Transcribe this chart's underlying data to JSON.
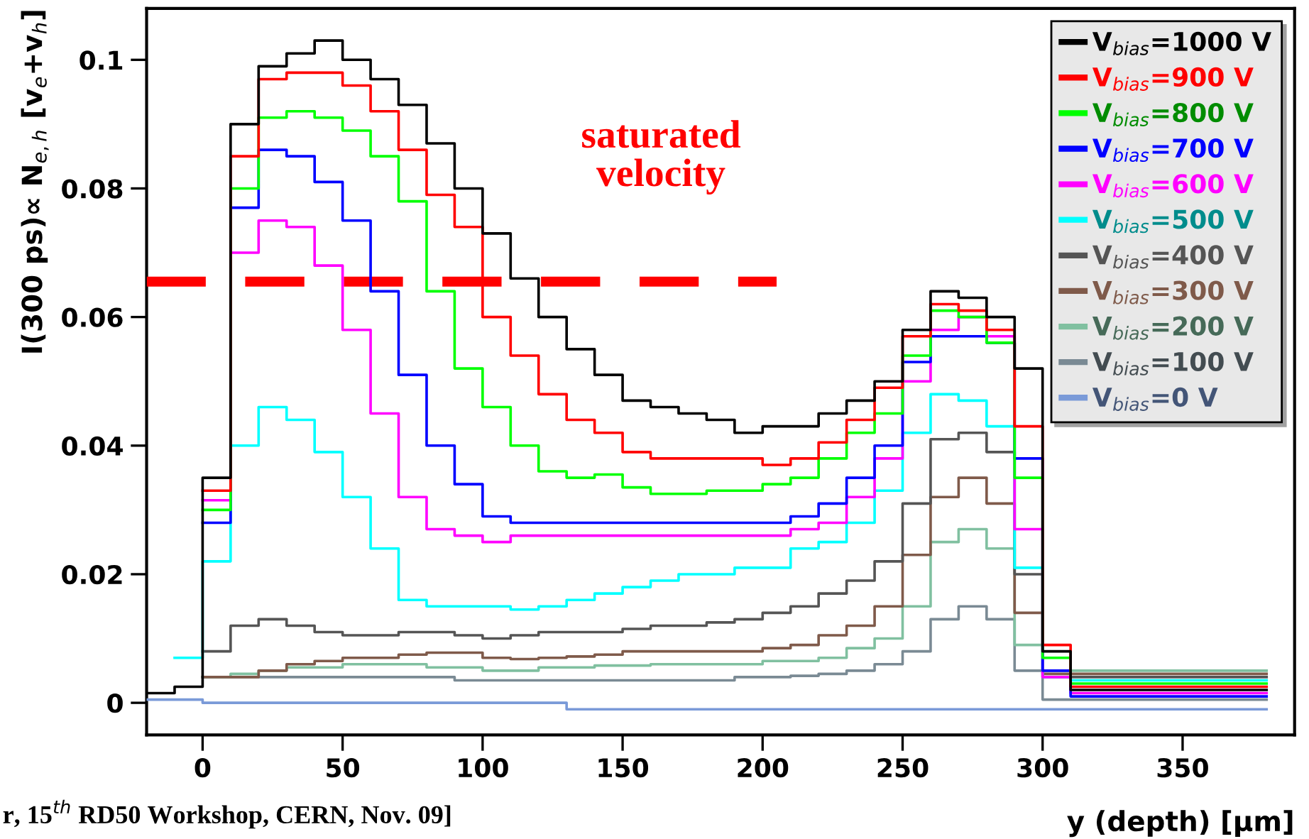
{
  "chart_data": {
    "type": "step",
    "xlabel": "y (depth) [μm]",
    "ylabel": "I(300 ps)∝ N$_{e,h}$ [v$_{e}$+v$_{h}$]",
    "x": [
      -20,
      -10,
      0,
      10,
      20,
      30,
      40,
      50,
      60,
      70,
      80,
      90,
      100,
      110,
      120,
      130,
      140,
      150,
      160,
      170,
      180,
      190,
      200,
      210,
      220,
      230,
      240,
      250,
      260,
      270,
      280,
      290,
      300,
      310,
      320,
      330,
      340,
      350,
      360,
      370,
      380
    ],
    "xlim": [
      -20,
      390
    ],
    "ylim": [
      -0.005,
      0.108
    ],
    "xticks": [
      0,
      50,
      100,
      150,
      200,
      250,
      300,
      350
    ],
    "yticks": [
      0,
      {
        "value": 0.02,
        "label": "0.02"
      },
      {
        "value": 0.04,
        "label": "0.04"
      },
      {
        "value": 0.06,
        "label": "0.06"
      },
      {
        "value": 0.08,
        "label": "0.08"
      },
      0.1
    ],
    "legend": "top right",
    "grid": false,
    "line_style": "solid",
    "marker": "none",
    "series": [
      {
        "name": "V$_{bias}$=1000 V",
        "color": "#000000",
        "values": [
          0.0015,
          0.0025,
          0.035,
          0.09,
          0.099,
          0.101,
          0.103,
          0.1,
          0.097,
          0.093,
          0.087,
          0.08,
          0.073,
          0.066,
          0.06,
          0.055,
          0.051,
          0.047,
          0.046,
          0.045,
          0.044,
          0.042,
          0.043,
          0.043,
          0.045,
          0.047,
          0.05,
          0.058,
          0.064,
          0.063,
          0.06,
          0.052,
          0.008,
          0.002,
          0.002,
          0.002,
          0.002,
          0.002,
          0.002,
          0.002,
          0.002
        ]
      },
      {
        "name": "V$_{bias}$=900 V",
        "color": "#ff0000",
        "values": [
          null,
          null,
          0.033,
          0.085,
          0.097,
          0.098,
          0.098,
          0.096,
          0.092,
          0.086,
          0.079,
          0.074,
          0.06,
          0.054,
          0.048,
          0.044,
          0.042,
          0.039,
          0.038,
          0.038,
          0.038,
          0.038,
          0.037,
          0.038,
          0.0405,
          0.044,
          0.049,
          0.057,
          0.062,
          0.061,
          0.058,
          0.043,
          0.009,
          0.0025,
          0.0025,
          0.0025,
          0.0025,
          0.0025,
          0.0025,
          0.0025,
          0.0025
        ]
      },
      {
        "name": "V$_{bias}$=800 V",
        "color": "#00ff00",
        "values": [
          null,
          null,
          0.03,
          0.08,
          0.091,
          0.092,
          0.091,
          0.089,
          0.085,
          0.078,
          0.064,
          0.052,
          0.046,
          0.04,
          0.036,
          0.035,
          0.0355,
          0.0335,
          0.0325,
          0.0325,
          0.033,
          0.033,
          0.034,
          0.035,
          0.038,
          0.042,
          0.045,
          0.054,
          0.061,
          0.06,
          0.056,
          0.035,
          0.007,
          0.003,
          0.003,
          0.003,
          0.003,
          0.003,
          0.003,
          0.003,
          0.003
        ]
      },
      {
        "name": "V$_{bias}$=700 V",
        "color": "#0000ff",
        "values": [
          null,
          null,
          0.028,
          0.077,
          0.086,
          0.085,
          0.081,
          0.075,
          0.064,
          0.051,
          0.04,
          0.034,
          0.029,
          0.028,
          0.028,
          0.028,
          0.028,
          0.028,
          0.028,
          0.028,
          0.028,
          0.028,
          0.028,
          0.029,
          0.031,
          0.035,
          0.04,
          0.053,
          0.057,
          0.057,
          0.056,
          0.038,
          0.005,
          0.001,
          0.001,
          0.001,
          0.001,
          0.001,
          0.001,
          0.001,
          0.001
        ]
      },
      {
        "name": "V$_{bias}$=600 V",
        "color": "#ff00ff",
        "values": [
          null,
          null,
          0.0315,
          0.07,
          0.075,
          0.074,
          0.068,
          0.058,
          0.045,
          0.032,
          0.027,
          0.026,
          0.025,
          0.026,
          0.026,
          0.026,
          0.026,
          0.026,
          0.026,
          0.026,
          0.026,
          0.026,
          0.026,
          0.027,
          0.028,
          0.032,
          0.038,
          0.05,
          0.058,
          0.06,
          0.057,
          0.027,
          0.004,
          0.0015,
          0.0015,
          0.0015,
          0.0015,
          0.0015,
          0.0015,
          0.0015,
          0.0015
        ]
      },
      {
        "name": "V$_{bias}$=500 V",
        "color": "#00ffff",
        "values": [
          null,
          0.007,
          0.022,
          0.04,
          0.046,
          0.044,
          0.039,
          0.032,
          0.024,
          0.016,
          0.015,
          0.015,
          0.015,
          0.0145,
          0.015,
          0.016,
          0.017,
          0.018,
          0.019,
          0.02,
          0.02,
          0.021,
          0.021,
          0.024,
          0.025,
          0.028,
          0.033,
          0.042,
          0.048,
          0.047,
          0.043,
          0.021,
          0.004,
          0.0035,
          0.0035,
          0.0035,
          0.0035,
          0.0035,
          0.0035,
          0.0035,
          0.0035
        ]
      },
      {
        "name": "V$_{bias}$=400 V",
        "color": "#555555",
        "values": [
          null,
          null,
          0.008,
          0.012,
          0.013,
          0.012,
          0.011,
          0.0105,
          0.0105,
          0.011,
          0.011,
          0.0105,
          0.01,
          0.0105,
          0.011,
          0.011,
          0.011,
          0.0115,
          0.012,
          0.012,
          0.0125,
          0.013,
          0.014,
          0.015,
          0.017,
          0.019,
          0.022,
          0.031,
          0.041,
          0.042,
          0.039,
          0.02,
          0.004,
          0.004,
          0.004,
          0.004,
          0.004,
          0.004,
          0.004,
          0.004,
          0.004
        ]
      },
      {
        "name": "V$_{bias}$=300 V",
        "color": "#7f5a4a",
        "values": [
          null,
          null,
          0.004,
          0.004,
          0.005,
          0.006,
          0.0065,
          0.007,
          0.007,
          0.0075,
          0.0078,
          0.0078,
          0.007,
          0.0068,
          0.007,
          0.0072,
          0.0075,
          0.008,
          0.008,
          0.008,
          0.008,
          0.008,
          0.0085,
          0.009,
          0.0105,
          0.012,
          0.015,
          0.023,
          0.032,
          0.035,
          0.031,
          0.014,
          0.0045,
          0.0045,
          0.0045,
          0.0045,
          0.0045,
          0.0045,
          0.0045,
          0.0045,
          0.0045
        ]
      },
      {
        "name": "V$_{bias}$=200 V",
        "color": "#80c0a0",
        "values": [
          null,
          null,
          0.004,
          0.0045,
          0.005,
          0.0055,
          0.0055,
          0.006,
          0.006,
          0.006,
          0.0055,
          0.0055,
          0.005,
          0.005,
          0.0055,
          0.0055,
          0.0058,
          0.0058,
          0.006,
          0.006,
          0.006,
          0.006,
          0.0065,
          0.0065,
          0.007,
          0.0085,
          0.01,
          0.015,
          0.025,
          0.027,
          0.024,
          0.009,
          0.005,
          0.005,
          0.005,
          0.005,
          0.005,
          0.005,
          0.005,
          0.005,
          0.005
        ]
      },
      {
        "name": "V$_{bias}$=100 V",
        "color": "#7a8a94",
        "values": [
          null,
          null,
          0.004,
          0.004,
          0.004,
          0.004,
          0.004,
          0.004,
          0.004,
          0.004,
          0.004,
          0.0035,
          0.0035,
          0.0035,
          0.0035,
          0.0035,
          0.0035,
          0.0035,
          0.0035,
          0.0035,
          0.0035,
          0.004,
          0.004,
          0.0042,
          0.0045,
          0.005,
          0.006,
          0.008,
          0.013,
          0.015,
          0.013,
          0.005,
          0.0005,
          0.0005,
          0.0005,
          0.0005,
          0.0005,
          0.0005,
          0.0005,
          0.0005,
          0.0005
        ]
      },
      {
        "name": "V$_{bias}$=0 V",
        "color": "#7a9ad8",
        "values": [
          0.0005,
          0.0005,
          0,
          0,
          0,
          0,
          0,
          0,
          0,
          0,
          0,
          0,
          0,
          0,
          0,
          -0.001,
          -0.001,
          -0.001,
          -0.001,
          -0.001,
          -0.001,
          -0.001,
          -0.001,
          -0.001,
          -0.001,
          -0.001,
          -0.001,
          -0.001,
          -0.001,
          -0.001,
          -0.001,
          -0.001,
          -0.001,
          -0.001,
          -0.001,
          -0.001,
          -0.001,
          -0.001,
          -0.001,
          -0.001,
          -0.001
        ]
      },
      {
        "type": "line",
        "color": "#ff0000",
        "line_style": "dashed",
        "x": [
          -20,
          205
        ],
        "values": [
          0.0655,
          0.0655
        ]
      }
    ],
    "annotations": [
      "saturated\nvelocity",
      "r, 15$^{th}$ RD50 Workshop, CERN, Nov. 09]"
    ]
  }
}
